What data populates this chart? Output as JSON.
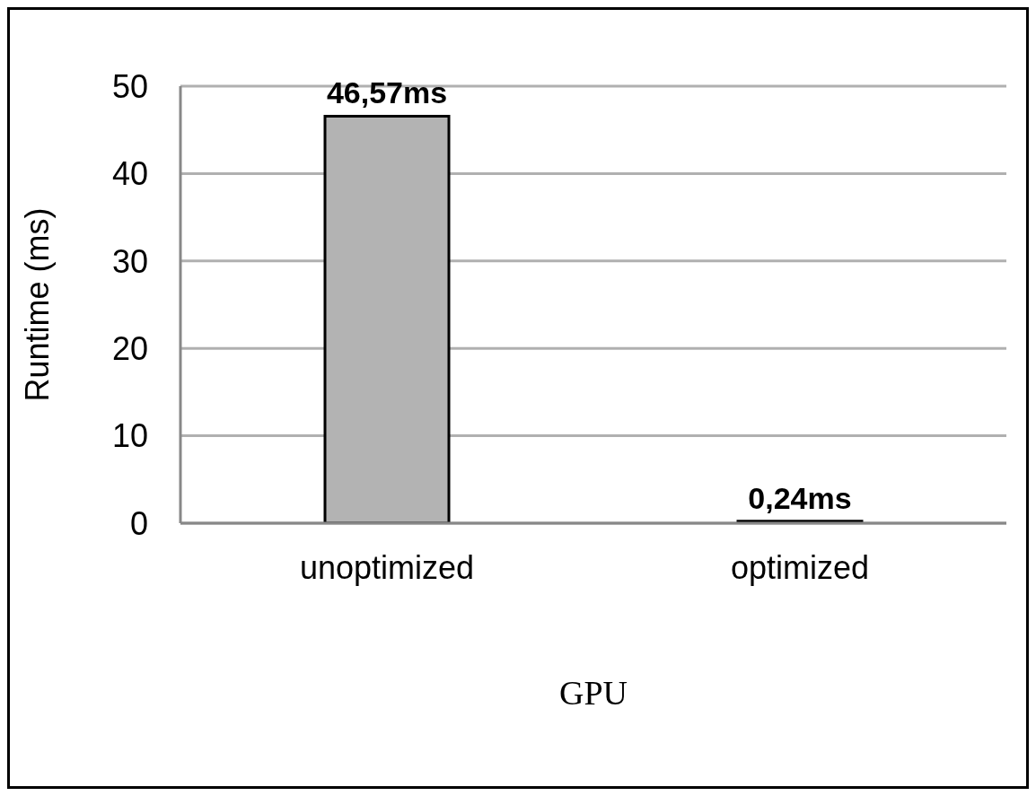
{
  "chart_data": {
    "type": "bar",
    "xlabel": "GPU",
    "ylabel": "Runtime (ms)",
    "categories": [
      "unoptimized",
      "optimized"
    ],
    "values": [
      46.57,
      0.24
    ],
    "value_labels": [
      "46,57ms",
      "0,24ms"
    ],
    "color": "#b3b3b3",
    "ylim": [
      0,
      50
    ],
    "yticks": [
      0,
      10,
      20,
      30,
      40,
      50
    ],
    "grid": "y"
  }
}
